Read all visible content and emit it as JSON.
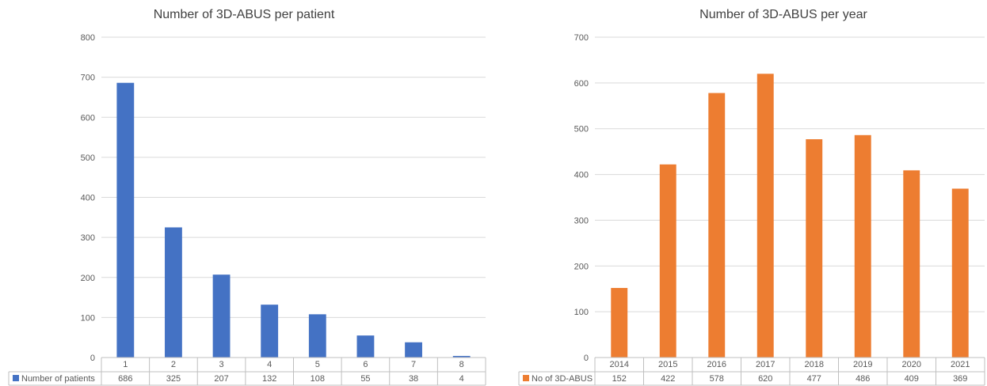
{
  "chart_data": [
    {
      "type": "bar",
      "title": "Number of 3D-ABUS per patient",
      "categories": [
        "1",
        "2",
        "3",
        "4",
        "5",
        "6",
        "7",
        "8"
      ],
      "series": [
        {
          "name": "Number of patients",
          "values": [
            686,
            325,
            207,
            132,
            108,
            55,
            38,
            4
          ],
          "color": "#4472c4"
        }
      ],
      "yticks": [
        "0",
        "100",
        "200",
        "300",
        "400",
        "500",
        "600",
        "700",
        "800"
      ],
      "ylim": [
        0,
        800
      ],
      "grid": true,
      "data_table": true
    },
    {
      "type": "bar",
      "title": "Number of 3D-ABUS per year",
      "categories": [
        "2014",
        "2015",
        "2016",
        "2017",
        "2018",
        "2019",
        "2020",
        "2021"
      ],
      "series": [
        {
          "name": "No of 3D-ABUS",
          "values": [
            152,
            422,
            578,
            620,
            477,
            486,
            409,
            369
          ],
          "color": "#ed7d31"
        }
      ],
      "yticks": [
        "0",
        "100",
        "200",
        "300",
        "400",
        "500",
        "600",
        "700"
      ],
      "ylim": [
        0,
        700
      ],
      "grid": true,
      "data_table": true
    }
  ]
}
